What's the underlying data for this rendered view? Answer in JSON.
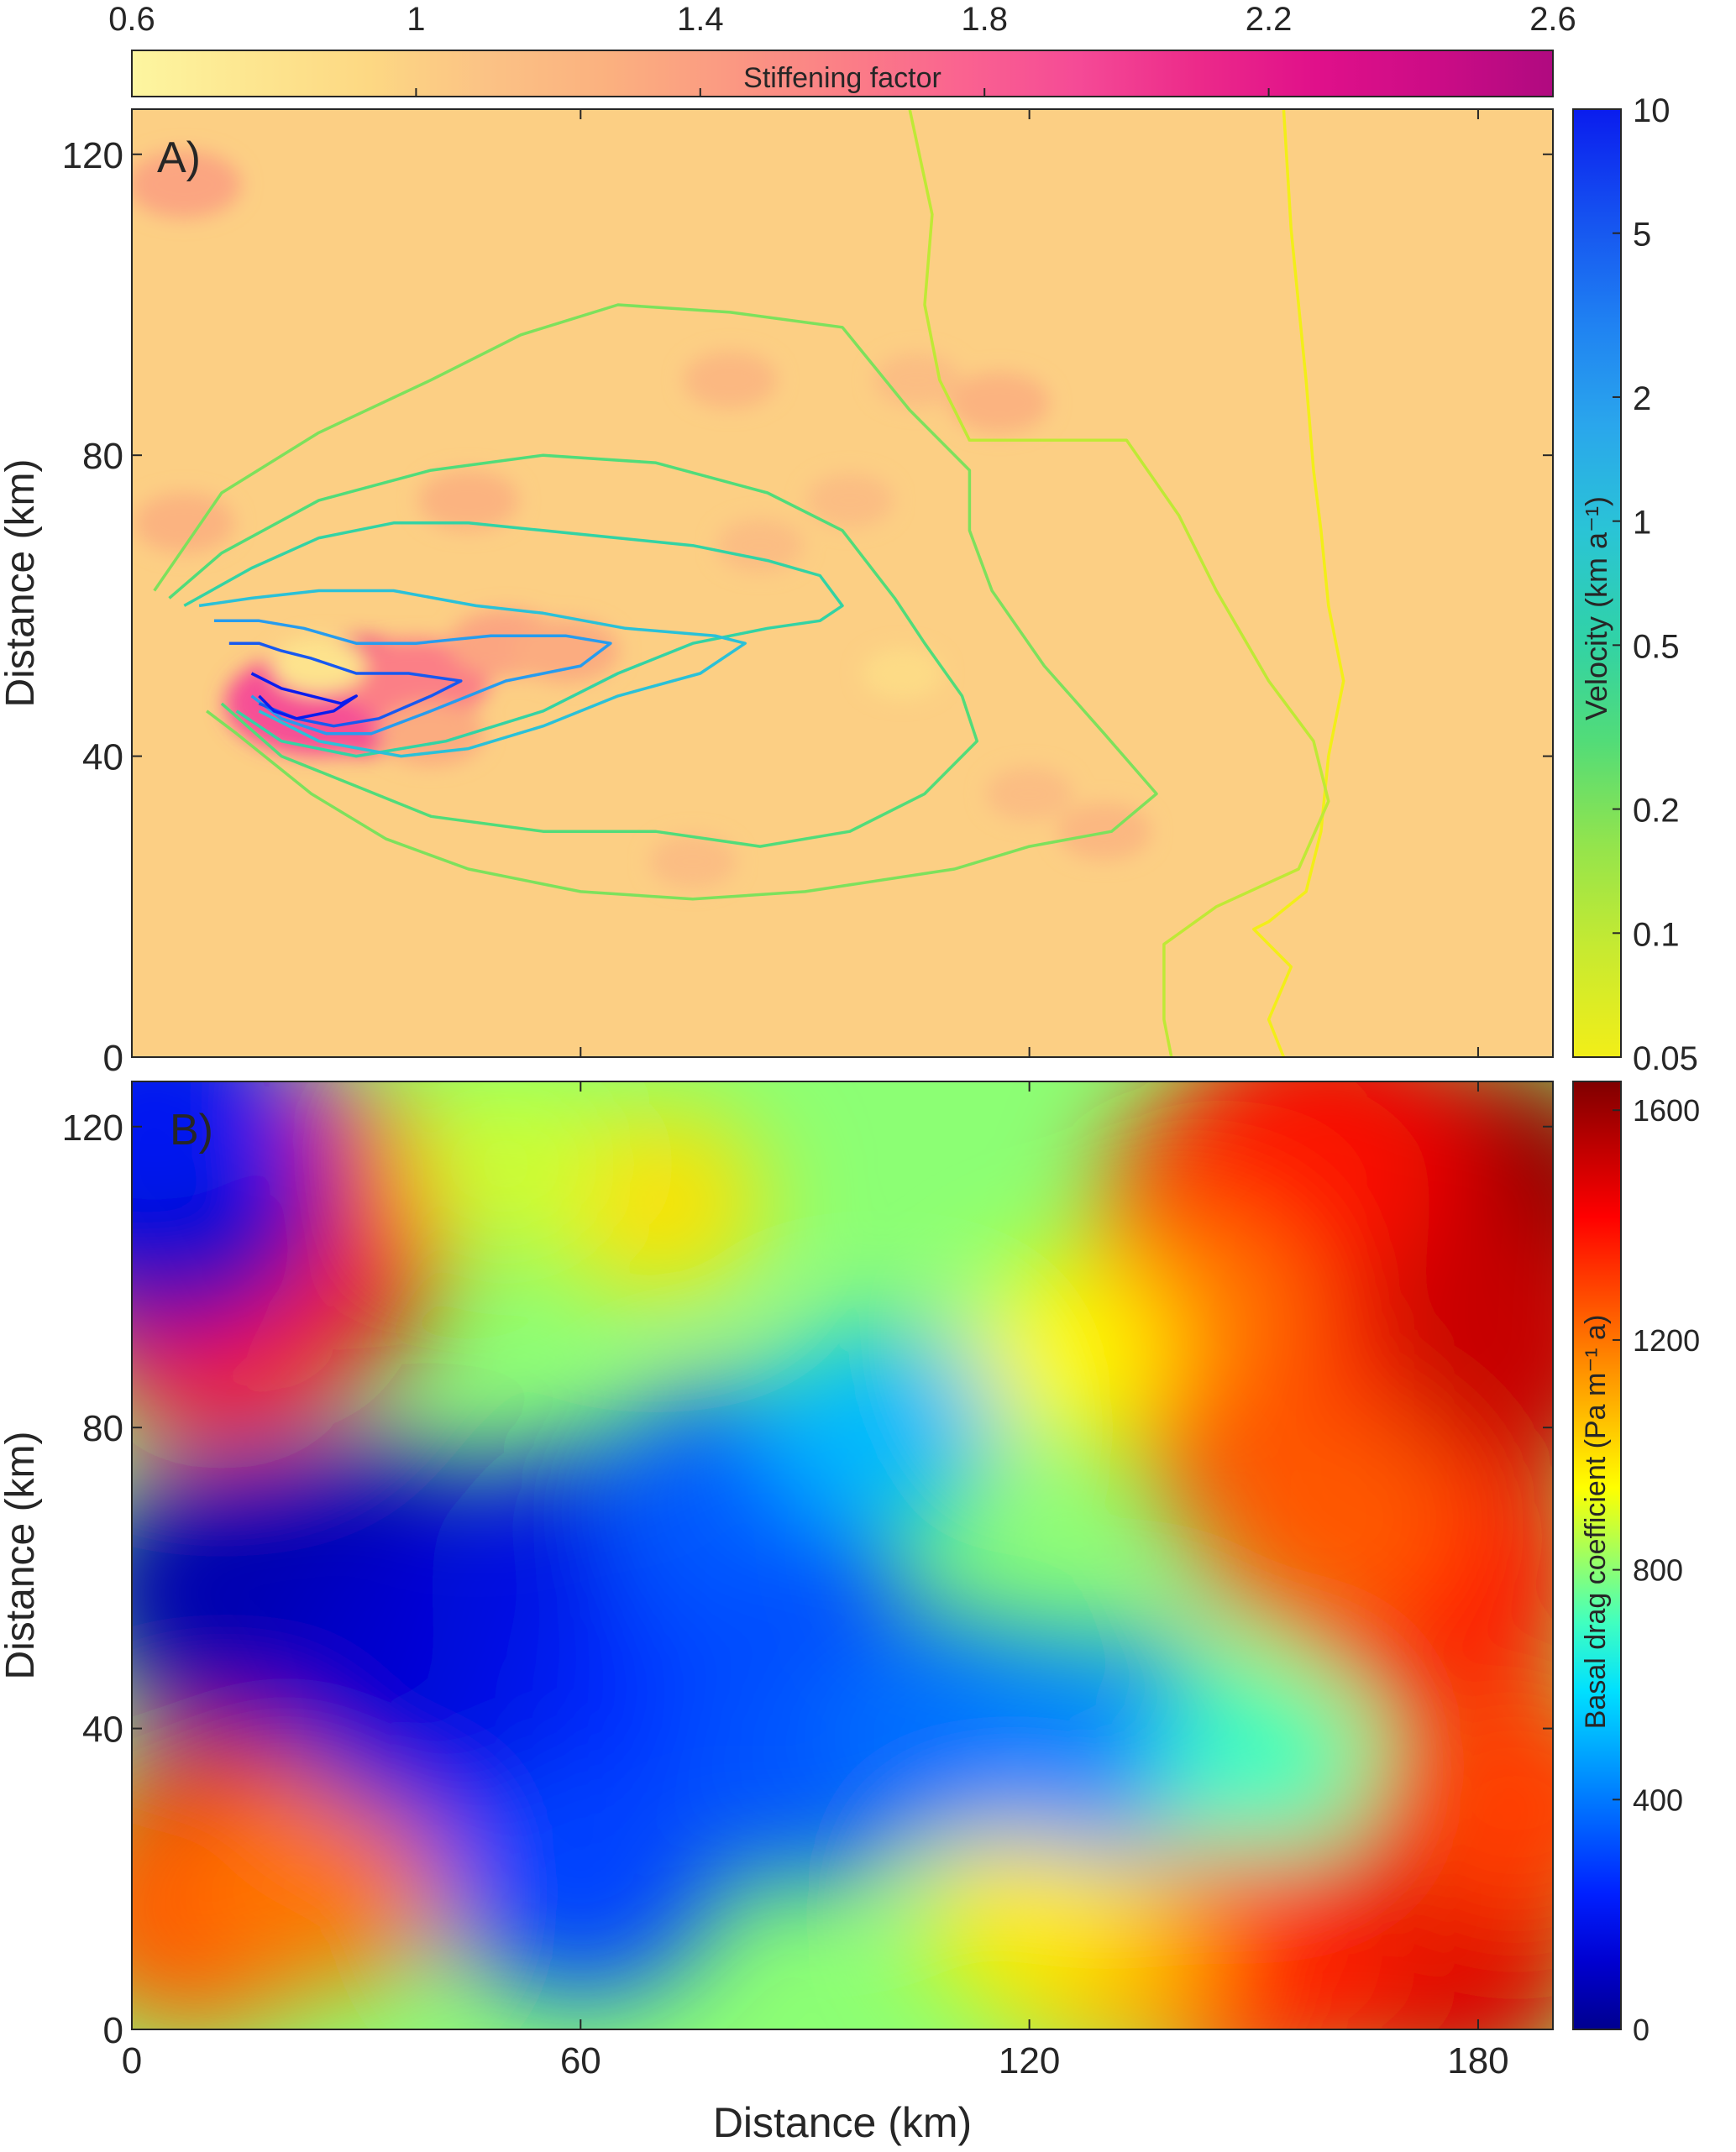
{
  "figure": {
    "shared_xlabel": "Distance (km)"
  },
  "chart_data": [
    {
      "type": "heatmap",
      "panel_label": "A)",
      "ylabel": "Distance (km)",
      "x_range_km": [
        0,
        190
      ],
      "y_range_km": [
        0,
        126
      ],
      "x_ticks": [
        0,
        60,
        120,
        180
      ],
      "y_ticks": [
        0,
        40,
        80,
        120
      ],
      "background_value": 1.0,
      "colorbar": {
        "label": "Stiffening  factor",
        "placement": "top",
        "range": [
          0.6,
          2.6
        ],
        "ticks": [
          "0.6",
          "1",
          "1.4",
          "1.8",
          "2.2",
          "2.6"
        ],
        "colors": [
          "#fdf6a0",
          "#fde690",
          "#fdd883",
          "#fbc285",
          "#fbb17f",
          "#fb9a82",
          "#fb7f86",
          "#fa6390",
          "#f54a96",
          "#ec2a8a",
          "#e0108a",
          "#cc0c86",
          "#b00a80"
        ]
      },
      "stiffening_patches": [
        {
          "x": 30,
          "y": 48,
          "value": 2.1
        },
        {
          "x": 25,
          "y": 47,
          "value": 1.9
        },
        {
          "x": 38,
          "y": 50,
          "value": 1.6
        },
        {
          "x": 50,
          "y": 55,
          "value": 1.35
        },
        {
          "x": 58,
          "y": 54,
          "value": 1.3
        },
        {
          "x": 40,
          "y": 43,
          "value": 1.3
        },
        {
          "x": 45,
          "y": 74,
          "value": 1.25
        },
        {
          "x": 7,
          "y": 116,
          "value": 1.35
        },
        {
          "x": 7,
          "y": 71,
          "value": 1.25
        },
        {
          "x": 80,
          "y": 90,
          "value": 1.2
        },
        {
          "x": 116,
          "y": 87,
          "value": 1.25
        },
        {
          "x": 105,
          "y": 90,
          "value": 1.15
        },
        {
          "x": 96,
          "y": 74,
          "value": 1.15
        },
        {
          "x": 130,
          "y": 30,
          "value": 1.2
        },
        {
          "x": 120,
          "y": 35,
          "value": 1.15
        },
        {
          "x": 75,
          "y": 26,
          "value": 1.15
        },
        {
          "x": 84,
          "y": 68,
          "value": 1.15
        },
        {
          "x": 25,
          "y": 52,
          "value": 0.8
        },
        {
          "x": 103,
          "y": 51,
          "value": 0.9
        }
      ],
      "velocity_colorbar": {
        "label": "Velocity (km a⁻¹)",
        "placement": "right",
        "scale": "log",
        "range": [
          0.05,
          10
        ],
        "ticks": [
          "0.05",
          "0.1",
          "0.2",
          "0.5",
          "1",
          "2",
          "5",
          "10"
        ],
        "colors": [
          "#f2ee18",
          "#c8ea30",
          "#94e44c",
          "#52dc78",
          "#30d2a8",
          "#2ac4d6",
          "#2aa6ec",
          "#1f80f2",
          "#1550f0",
          "#0a1cee"
        ]
      },
      "velocity_contours": [
        {
          "level": 0.05,
          "points": [
            [
              154,
              126
            ],
            [
              155,
              110
            ],
            [
              157,
              90
            ],
            [
              158,
              78
            ],
            [
              159,
              70
            ],
            [
              160,
              60
            ],
            [
              162,
              50
            ],
            [
              161,
              45
            ],
            [
              160,
              40
            ],
            [
              159,
              30
            ],
            [
              157,
              22
            ],
            [
              152,
              18
            ],
            [
              150,
              17
            ],
            [
              155,
              12
            ],
            [
              152,
              5
            ],
            [
              154,
              0
            ]
          ]
        },
        {
          "level": 0.1,
          "points": [
            [
              104,
              126
            ],
            [
              107,
              112
            ],
            [
              106,
              100
            ],
            [
              108,
              90
            ],
            [
              112,
              82
            ],
            [
              133,
              82
            ],
            [
              140,
              72
            ],
            [
              145,
              62
            ],
            [
              152,
              50
            ],
            [
              158,
              42
            ],
            [
              160,
              34
            ],
            [
              156,
              25
            ],
            [
              145,
              20
            ],
            [
              138,
              15
            ],
            [
              138,
              5
            ],
            [
              139,
              0
            ]
          ]
        },
        {
          "level": 0.2,
          "points": [
            [
              3,
              62
            ],
            [
              12,
              75
            ],
            [
              25,
              83
            ],
            [
              40,
              90
            ],
            [
              52,
              96
            ],
            [
              65,
              100
            ],
            [
              80,
              99
            ],
            [
              95,
              97
            ],
            [
              104,
              86
            ],
            [
              112,
              78
            ],
            [
              112,
              70
            ],
            [
              115,
              62
            ],
            [
              122,
              52
            ],
            [
              130,
              43
            ],
            [
              137,
              35
            ],
            [
              131,
              30
            ],
            [
              120,
              28
            ],
            [
              110,
              25
            ],
            [
              90,
              22
            ],
            [
              75,
              21
            ],
            [
              60,
              22
            ],
            [
              45,
              25
            ],
            [
              34,
              29
            ],
            [
              24,
              35
            ],
            [
              14,
              43
            ],
            [
              10,
              46
            ]
          ]
        },
        {
          "level": 0.3,
          "points": [
            [
              5,
              61
            ],
            [
              12,
              67
            ],
            [
              25,
              74
            ],
            [
              40,
              78
            ],
            [
              55,
              80
            ],
            [
              70,
              79
            ],
            [
              85,
              75
            ],
            [
              95,
              70
            ],
            [
              102,
              61
            ],
            [
              106,
              55
            ],
            [
              111,
              48
            ],
            [
              113,
              42
            ],
            [
              106,
              35
            ],
            [
              96,
              30
            ],
            [
              84,
              28
            ],
            [
              70,
              30
            ],
            [
              55,
              30
            ],
            [
              40,
              32
            ],
            [
              30,
              36
            ],
            [
              20,
              40
            ],
            [
              12,
              47
            ]
          ]
        },
        {
          "level": 0.5,
          "points": [
            [
              7,
              60
            ],
            [
              16,
              65
            ],
            [
              25,
              69
            ],
            [
              35,
              71
            ],
            [
              45,
              71
            ],
            [
              55,
              70
            ],
            [
              65,
              69
            ],
            [
              75,
              68
            ],
            [
              85,
              66
            ],
            [
              92,
              64
            ],
            [
              95,
              60
            ],
            [
              92,
              58
            ],
            [
              85,
              57
            ],
            [
              75,
              55
            ],
            [
              65,
              51
            ],
            [
              55,
              46
            ],
            [
              42,
              42
            ],
            [
              30,
              40
            ],
            [
              20,
              42
            ],
            [
              14,
              46
            ]
          ]
        },
        {
          "level": 1,
          "points": [
            [
              9,
              60
            ],
            [
              16,
              61
            ],
            [
              25,
              62
            ],
            [
              35,
              62
            ],
            [
              46,
              60
            ],
            [
              55,
              59
            ],
            [
              66,
              57
            ],
            [
              78,
              56
            ],
            [
              82,
              55
            ],
            [
              76,
              51
            ],
            [
              65,
              48
            ],
            [
              55,
              44
            ],
            [
              45,
              41
            ],
            [
              36,
              40
            ],
            [
              25,
              42
            ],
            [
              17,
              46
            ]
          ]
        },
        {
          "level": 2,
          "points": [
            [
              11,
              58
            ],
            [
              17,
              58
            ],
            [
              23,
              57
            ],
            [
              30,
              55
            ],
            [
              38,
              55
            ],
            [
              48,
              56
            ],
            [
              58,
              56
            ],
            [
              64,
              55
            ],
            [
              60,
              52
            ],
            [
              50,
              50
            ],
            [
              40,
              46
            ],
            [
              32,
              43
            ],
            [
              26,
              43
            ],
            [
              20,
              45
            ],
            [
              16,
              48
            ]
          ]
        },
        {
          "level": 5,
          "points": [
            [
              13,
              55
            ],
            [
              17,
              55
            ],
            [
              20,
              54
            ],
            [
              24,
              53
            ],
            [
              30,
              51
            ],
            [
              37,
              51
            ],
            [
              44,
              50
            ],
            [
              40,
              48
            ],
            [
              33,
              45
            ],
            [
              27,
              44
            ],
            [
              22,
              45
            ],
            [
              17,
              47
            ]
          ]
        },
        {
          "level": 10,
          "points": [
            [
              16,
              51
            ],
            [
              20,
              49
            ],
            [
              24,
              48
            ],
            [
              28,
              47
            ],
            [
              30,
              48
            ],
            [
              27,
              46
            ],
            [
              22,
              45
            ],
            [
              19,
              46
            ],
            [
              17,
              48
            ]
          ]
        }
      ]
    },
    {
      "type": "heatmap",
      "panel_label": "B)",
      "xlabel": "Distance (km)",
      "ylabel": "Distance (km)",
      "x_range_km": [
        0,
        190
      ],
      "y_range_km": [
        0,
        126
      ],
      "x_ticks": [
        0,
        60,
        120,
        180
      ],
      "y_ticks": [
        0,
        40,
        80,
        120
      ],
      "background_value": 800,
      "colorbar": {
        "label": "Basal drag coefficient (Pa m⁻¹ a)",
        "placement": "right",
        "range": [
          0,
          1650
        ],
        "ticks": [
          "0",
          "400",
          "800",
          "1200",
          "1600"
        ],
        "colors": [
          "#00008f",
          "#0000d0",
          "#0020ff",
          "#0060ff",
          "#00a0ff",
          "#00e0ff",
          "#40ffc0",
          "#a0ff60",
          "#ffff00",
          "#ffc000",
          "#ff8000",
          "#ff4000",
          "#ff0000",
          "#c00000",
          "#800000"
        ]
      },
      "basal_drag_field": [
        {
          "x": 180,
          "y": 110,
          "value": 1620
        },
        {
          "x": 180,
          "y": 90,
          "value": 1520
        },
        {
          "x": 160,
          "y": 118,
          "value": 1450
        },
        {
          "x": 150,
          "y": 110,
          "value": 1380
        },
        {
          "x": 150,
          "y": 85,
          "value": 1350
        },
        {
          "x": 175,
          "y": 60,
          "value": 1400
        },
        {
          "x": 160,
          "y": 68,
          "value": 1250
        },
        {
          "x": 140,
          "y": 95,
          "value": 1200
        },
        {
          "x": 175,
          "y": 10,
          "value": 1480
        },
        {
          "x": 150,
          "y": 8,
          "value": 1350
        },
        {
          "x": 185,
          "y": 30,
          "value": 1300
        },
        {
          "x": 130,
          "y": 10,
          "value": 1100
        },
        {
          "x": 120,
          "y": 15,
          "value": 980
        },
        {
          "x": 20,
          "y": 105,
          "value": 1630
        },
        {
          "x": 12,
          "y": 95,
          "value": 1380
        },
        {
          "x": 25,
          "y": 110,
          "value": 1350
        },
        {
          "x": 15,
          "y": 23,
          "value": 1500
        },
        {
          "x": 8,
          "y": 15,
          "value": 1250
        },
        {
          "x": 25,
          "y": 20,
          "value": 1200
        },
        {
          "x": 70,
          "y": 110,
          "value": 1000
        },
        {
          "x": 50,
          "y": 115,
          "value": 880
        },
        {
          "x": 125,
          "y": 90,
          "value": 950
        },
        {
          "x": 30,
          "y": 60,
          "value": 70
        },
        {
          "x": 15,
          "y": 58,
          "value": 60
        },
        {
          "x": 45,
          "y": 55,
          "value": 90
        },
        {
          "x": 40,
          "y": 45,
          "value": 110
        },
        {
          "x": 60,
          "y": 60,
          "value": 160
        },
        {
          "x": 55,
          "y": 35,
          "value": 170
        },
        {
          "x": 75,
          "y": 45,
          "value": 250
        },
        {
          "x": 85,
          "y": 55,
          "value": 300
        },
        {
          "x": 90,
          "y": 35,
          "value": 330
        },
        {
          "x": 110,
          "y": 40,
          "value": 380
        },
        {
          "x": 130,
          "y": 38,
          "value": 420
        },
        {
          "x": 80,
          "y": 70,
          "value": 340
        },
        {
          "x": 100,
          "y": 80,
          "value": 520
        },
        {
          "x": 60,
          "y": 20,
          "value": 300
        },
        {
          "x": 5,
          "y": 110,
          "value": 60
        },
        {
          "x": 3,
          "y": 122,
          "value": 200
        },
        {
          "x": 150,
          "y": 35,
          "value": 700
        }
      ]
    }
  ]
}
